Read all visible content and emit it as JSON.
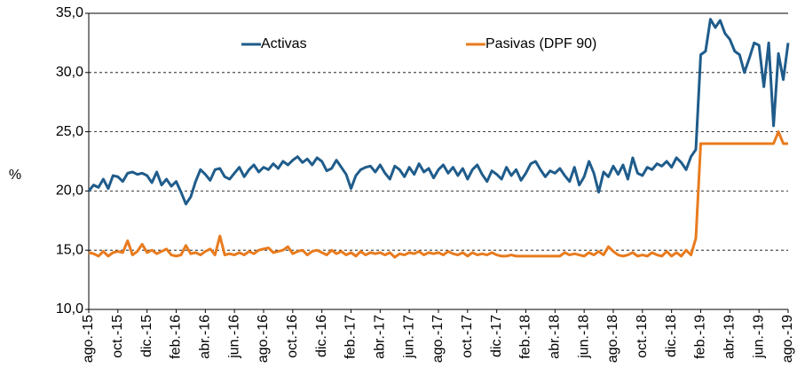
{
  "chart_data": {
    "type": "line",
    "ylabel": "%",
    "categories": [
      "ago.-15",
      null,
      null,
      null,
      null,
      null,
      "oct.-15",
      null,
      null,
      null,
      null,
      null,
      "dic.-15",
      null,
      null,
      null,
      null,
      null,
      "feb.-16",
      null,
      null,
      null,
      null,
      null,
      "abr.-16",
      null,
      null,
      null,
      null,
      null,
      "jun.-16",
      null,
      null,
      null,
      null,
      null,
      "ago.-16",
      null,
      null,
      null,
      null,
      null,
      "oct.-16",
      null,
      null,
      null,
      null,
      null,
      "dic.-16",
      null,
      null,
      null,
      null,
      null,
      "feb.-17",
      null,
      null,
      null,
      null,
      null,
      "abr.-17",
      null,
      null,
      null,
      null,
      null,
      "jun.-17",
      null,
      null,
      null,
      null,
      null,
      "ago.-17",
      null,
      null,
      null,
      null,
      null,
      "oct.-17",
      null,
      null,
      null,
      null,
      null,
      "dic.-17",
      null,
      null,
      null,
      null,
      null,
      "feb.-18",
      null,
      null,
      null,
      null,
      null,
      "abr.-18",
      null,
      null,
      null,
      null,
      null,
      "jun.-18",
      null,
      null,
      null,
      null,
      null,
      "ago.-18",
      null,
      null,
      null,
      null,
      null,
      "oct.-18",
      null,
      null,
      null,
      null,
      null,
      "dic.-18",
      null,
      null,
      null,
      null,
      null,
      "feb.-19",
      null,
      null,
      null,
      null,
      null,
      "abr.-19",
      null,
      null,
      null,
      null,
      null,
      "jun.-19",
      null,
      null,
      null,
      null,
      null,
      "ago.-19"
    ],
    "series": [
      {
        "name": "Activas",
        "color": "#1f5c8b",
        "values": [
          20.0,
          20.5,
          20.3,
          21.0,
          20.2,
          21.3,
          21.2,
          20.8,
          21.5,
          21.6,
          21.4,
          21.5,
          21.3,
          20.7,
          21.6,
          20.5,
          21.0,
          20.4,
          20.8,
          19.9,
          18.9,
          19.5,
          20.8,
          21.8,
          21.4,
          20.9,
          21.8,
          21.9,
          21.2,
          21.0,
          21.5,
          22.0,
          21.2,
          21.8,
          22.2,
          21.6,
          22.0,
          21.8,
          22.3,
          21.9,
          22.5,
          22.2,
          22.6,
          22.9,
          22.4,
          22.7,
          22.2,
          22.8,
          22.5,
          21.7,
          21.9,
          22.6,
          22.0,
          21.4,
          20.2,
          21.3,
          21.8,
          22.0,
          22.1,
          21.6,
          22.2,
          21.5,
          21.0,
          22.1,
          21.8,
          21.2,
          22.0,
          21.4,
          22.3,
          21.6,
          21.9,
          21.1,
          21.8,
          22.2,
          21.5,
          22.0,
          21.3,
          21.9,
          21.0,
          21.8,
          22.2,
          21.4,
          20.8,
          21.7,
          21.4,
          21.0,
          22.0,
          21.3,
          21.8,
          20.9,
          21.5,
          22.3,
          22.5,
          21.8,
          21.2,
          21.7,
          21.5,
          21.9,
          21.3,
          20.8,
          22.0,
          20.5,
          21.2,
          22.5,
          21.5,
          19.9,
          21.6,
          21.2,
          22.1,
          21.4,
          22.2,
          21.0,
          22.8,
          21.5,
          21.3,
          22.0,
          21.8,
          22.3,
          22.1,
          22.5,
          22.0,
          22.8,
          22.4,
          21.8,
          22.9,
          23.5,
          31.5,
          31.8,
          34.5,
          33.8,
          34.4,
          33.3,
          32.8,
          31.8,
          31.5,
          30.0,
          31.2,
          32.5,
          32.3,
          28.8,
          32.5,
          25.5,
          31.6,
          29.4,
          32.5
        ]
      },
      {
        "name": "Pasivas (DPF 90)",
        "color": "#e87b1e",
        "values": [
          14.8,
          14.7,
          14.5,
          14.9,
          14.5,
          14.8,
          14.9,
          14.8,
          15.8,
          14.6,
          14.9,
          15.5,
          14.8,
          15.0,
          14.7,
          14.9,
          15.1,
          14.6,
          14.5,
          14.6,
          15.4,
          14.7,
          14.8,
          14.6,
          14.9,
          15.1,
          14.6,
          16.2,
          14.6,
          14.7,
          14.6,
          14.8,
          14.6,
          14.9,
          14.7,
          15.0,
          15.1,
          15.2,
          14.8,
          14.9,
          15.0,
          15.3,
          14.7,
          14.9,
          15.0,
          14.6,
          14.9,
          15.0,
          14.8,
          14.6,
          15.0,
          14.7,
          14.9,
          14.6,
          14.8,
          14.5,
          14.9,
          14.6,
          14.8,
          14.7,
          14.8,
          14.6,
          14.8,
          14.4,
          14.7,
          14.6,
          14.8,
          14.7,
          14.9,
          14.6,
          14.8,
          14.7,
          14.8,
          14.6,
          14.9,
          14.7,
          14.6,
          14.8,
          14.5,
          14.8,
          14.6,
          14.7,
          14.6,
          14.8,
          14.6,
          14.5,
          14.5,
          14.6,
          14.5,
          14.5,
          14.5,
          14.5,
          14.5,
          14.5,
          14.5,
          14.5,
          14.5,
          14.5,
          14.8,
          14.6,
          14.7,
          14.6,
          14.5,
          14.8,
          14.6,
          14.9,
          14.6,
          15.3,
          14.9,
          14.6,
          14.5,
          14.6,
          14.8,
          14.5,
          14.6,
          14.5,
          14.8,
          14.6,
          14.5,
          14.9,
          14.5,
          14.8,
          14.5,
          15.0,
          14.6,
          16.0,
          24,
          24,
          24,
          24,
          24,
          24,
          24,
          24,
          24,
          24,
          24,
          24,
          24,
          24,
          24,
          24,
          25.0,
          24.0,
          24.0
        ]
      }
    ],
    "ylim": [
      10,
      35
    ],
    "yticks": [
      {
        "value": 10,
        "label": "10,0"
      },
      {
        "value": 15,
        "label": "15,0"
      },
      {
        "value": 20,
        "label": "20,0"
      },
      {
        "value": 25,
        "label": "25,0"
      },
      {
        "value": 30,
        "label": "30,0"
      },
      {
        "value": 35,
        "label": "35,0"
      }
    ],
    "grid": true
  }
}
